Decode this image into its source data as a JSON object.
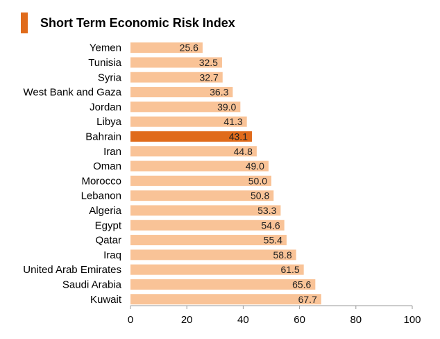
{
  "chart_data": {
    "type": "bar",
    "orientation": "horizontal",
    "title": "Short Term Economic Risk Index",
    "categories": [
      "Yemen",
      "Tunisia",
      "Syria",
      "West Bank and Gaza",
      "Jordan",
      "Libya",
      "Bahrain",
      "Iran",
      "Oman",
      "Morocco",
      "Lebanon",
      "Algeria",
      "Egypt",
      "Qatar",
      "Iraq",
      "United Arab Emirates",
      "Saudi Arabia",
      "Kuwait"
    ],
    "values": [
      25.6,
      32.5,
      32.7,
      36.3,
      39.0,
      41.3,
      43.1,
      44.8,
      49.0,
      50.0,
      50.8,
      53.3,
      54.6,
      55.4,
      58.8,
      61.5,
      65.6,
      67.7
    ],
    "value_labels": [
      "25.6",
      "32.5",
      "32.7",
      "36.3",
      "39.0",
      "41.3",
      "43.1",
      "44.8",
      "49.0",
      "50.0",
      "50.8",
      "53.3",
      "54.6",
      "55.4",
      "58.8",
      "61.5",
      "65.6",
      "67.7"
    ],
    "highlight": "Bahrain",
    "xlim": [
      0,
      100
    ],
    "xticks": [
      "0",
      "20",
      "40",
      "60",
      "80",
      "100"
    ],
    "grid": false,
    "colors": {
      "bar": "#f9c397",
      "highlight": "#e06b1b",
      "axis": "#999999",
      "title_accent": "#e06b1b"
    }
  }
}
